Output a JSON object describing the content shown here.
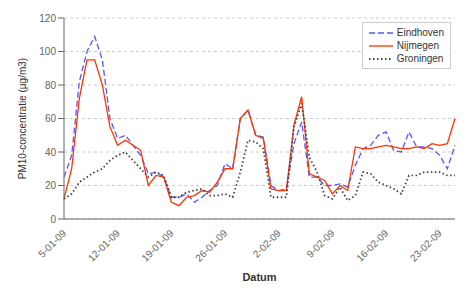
{
  "chart_data": {
    "type": "line",
    "title": "",
    "xlabel": "Datum",
    "ylabel": "PM10-concentratie (µg/m3)",
    "categories": [
      "5-01-09",
      null,
      null,
      null,
      null,
      null,
      null,
      "12-01-09",
      null,
      null,
      null,
      null,
      null,
      null,
      "19-01-09",
      null,
      null,
      null,
      null,
      null,
      null,
      "26-01-09",
      null,
      null,
      null,
      null,
      null,
      null,
      "2-02-09",
      null,
      null,
      null,
      null,
      null,
      null,
      "9-02-09",
      null,
      null,
      null,
      null,
      null,
      null,
      "16-02-09",
      null,
      null,
      null,
      null,
      null,
      null,
      "23-02-09",
      null,
      null
    ],
    "series": [
      {
        "name": "Eindhoven",
        "color": "#5555ff",
        "line_style": "dashed",
        "values": [
          25,
          38,
          82,
          100,
          109,
          95,
          60,
          48,
          50,
          44,
          38,
          27,
          28,
          25,
          13,
          13,
          15,
          10,
          13,
          17,
          20,
          33,
          30,
          60,
          65,
          50,
          49,
          20,
          17,
          18,
          45,
          58,
          25,
          25,
          20,
          20,
          21,
          19,
          32,
          42,
          44,
          50,
          52,
          41,
          40,
          52,
          43,
          43,
          42,
          38,
          30,
          44
        ]
      },
      {
        "name": "Nijmegen",
        "color": "#ff3300",
        "line_style": "solid",
        "values": [
          12,
          30,
          72,
          95,
          95,
          80,
          55,
          44,
          47,
          44,
          41,
          20,
          26,
          25,
          10,
          8,
          13,
          14,
          17,
          16,
          22,
          30,
          30,
          60,
          65,
          50,
          48,
          18,
          17,
          17,
          56,
          73,
          27,
          25,
          23,
          15,
          20,
          17,
          43,
          42,
          42,
          43,
          44,
          43,
          42,
          42,
          43,
          42,
          45,
          44,
          45,
          60
        ]
      },
      {
        "name": "Groningen",
        "color": "#444444",
        "line_style": "dotted",
        "values": [
          12,
          15,
          22,
          25,
          28,
          30,
          35,
          38,
          40,
          35,
          30,
          25,
          28,
          26,
          13,
          13,
          16,
          17,
          18,
          14,
          14,
          15,
          13,
          28,
          47,
          46,
          42,
          13,
          13,
          13,
          55,
          69,
          37,
          28,
          14,
          12,
          19,
          11,
          14,
          28,
          27,
          22,
          20,
          18,
          15,
          26,
          26,
          28,
          28,
          28,
          26,
          26
        ]
      }
    ],
    "ylim": [
      0,
      120
    ],
    "yticks": [
      0,
      20,
      40,
      60,
      80,
      100,
      120
    ],
    "grid": true,
    "legend": "upper right"
  }
}
